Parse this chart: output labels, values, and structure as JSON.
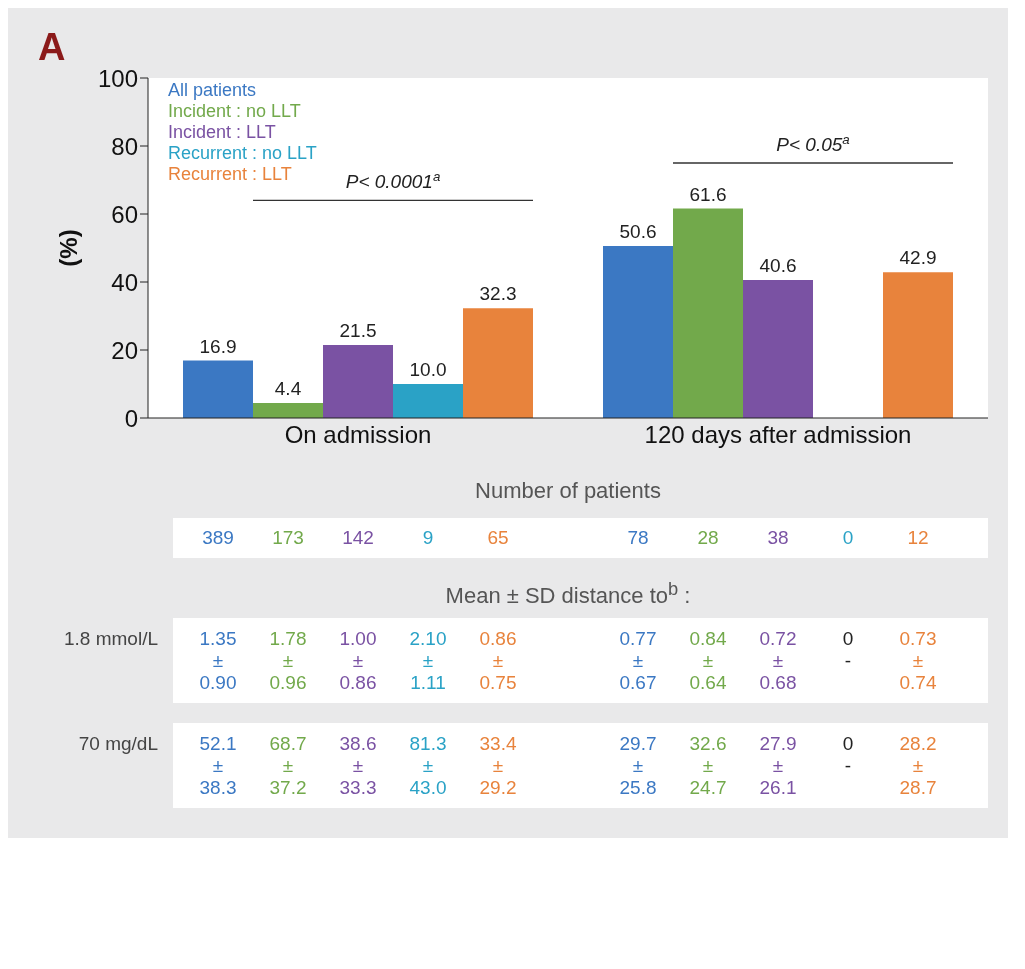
{
  "chart_data": {
    "type": "bar",
    "title": "A",
    "ylabel": "(%)",
    "categories": [
      "On admission",
      "120 days after admission"
    ],
    "series": [
      {
        "name": "All patients",
        "color": "#3b78c3",
        "values": [
          16.9,
          50.6
        ],
        "value_labels": [
          "16.9",
          "50.6"
        ]
      },
      {
        "name": "Incident : no LLT",
        "color": "#72a94b",
        "values": [
          4.4,
          61.6
        ],
        "value_labels": [
          "4.4",
          "61.6"
        ]
      },
      {
        "name": "Incident : LLT",
        "color": "#7a52a3",
        "values": [
          21.5,
          40.6
        ],
        "value_labels": [
          "21.5",
          "40.6"
        ]
      },
      {
        "name": "Recurrent : no LLT",
        "color": "#2aa2c6",
        "values": [
          10.0,
          null
        ],
        "value_labels": [
          "10.0",
          null
        ]
      },
      {
        "name": "Recurrent : LLT",
        "color": "#e8833c",
        "values": [
          32.3,
          42.9
        ],
        "value_labels": [
          "32.3",
          "42.9"
        ]
      }
    ],
    "ylim": [
      0,
      100
    ],
    "yticks": [
      0,
      20,
      40,
      60,
      80,
      100
    ],
    "grid": false,
    "legend": "top left",
    "annotations": [
      "P< 0.0001$^{a}$",
      "P< 0.05$^{a}$",
      "Number of patients",
      "389",
      "173",
      "142",
      "9",
      "65",
      "78",
      "28",
      "38",
      "0",
      "12",
      "Mean ± SD distance to$^{b}$ :",
      "1.8 mmol/L",
      "1.35\n±\n0.90",
      "1.78\n±\n0.96",
      "1.00\n±\n0.86",
      "2.10\n±\n1.11",
      "0.86\n±\n0.75",
      "0.77\n±\n0.67",
      "0.84\n±\n0.64",
      "0.72\n±\n0.68",
      "0\n-",
      "0.73\n±\n0.74",
      "70 mg/dL",
      "52.1\n±\n38.3",
      "68.7\n±\n37.2",
      "38.6\n±\n33.3",
      "81.3\n±\n43.0",
      "33.4\n±\n29.2",
      "29.7\n±\n25.8",
      "32.6\n±\n24.7",
      "27.9\n±\n26.1",
      "0\n-",
      "28.2\n±\n28.7"
    ]
  }
}
